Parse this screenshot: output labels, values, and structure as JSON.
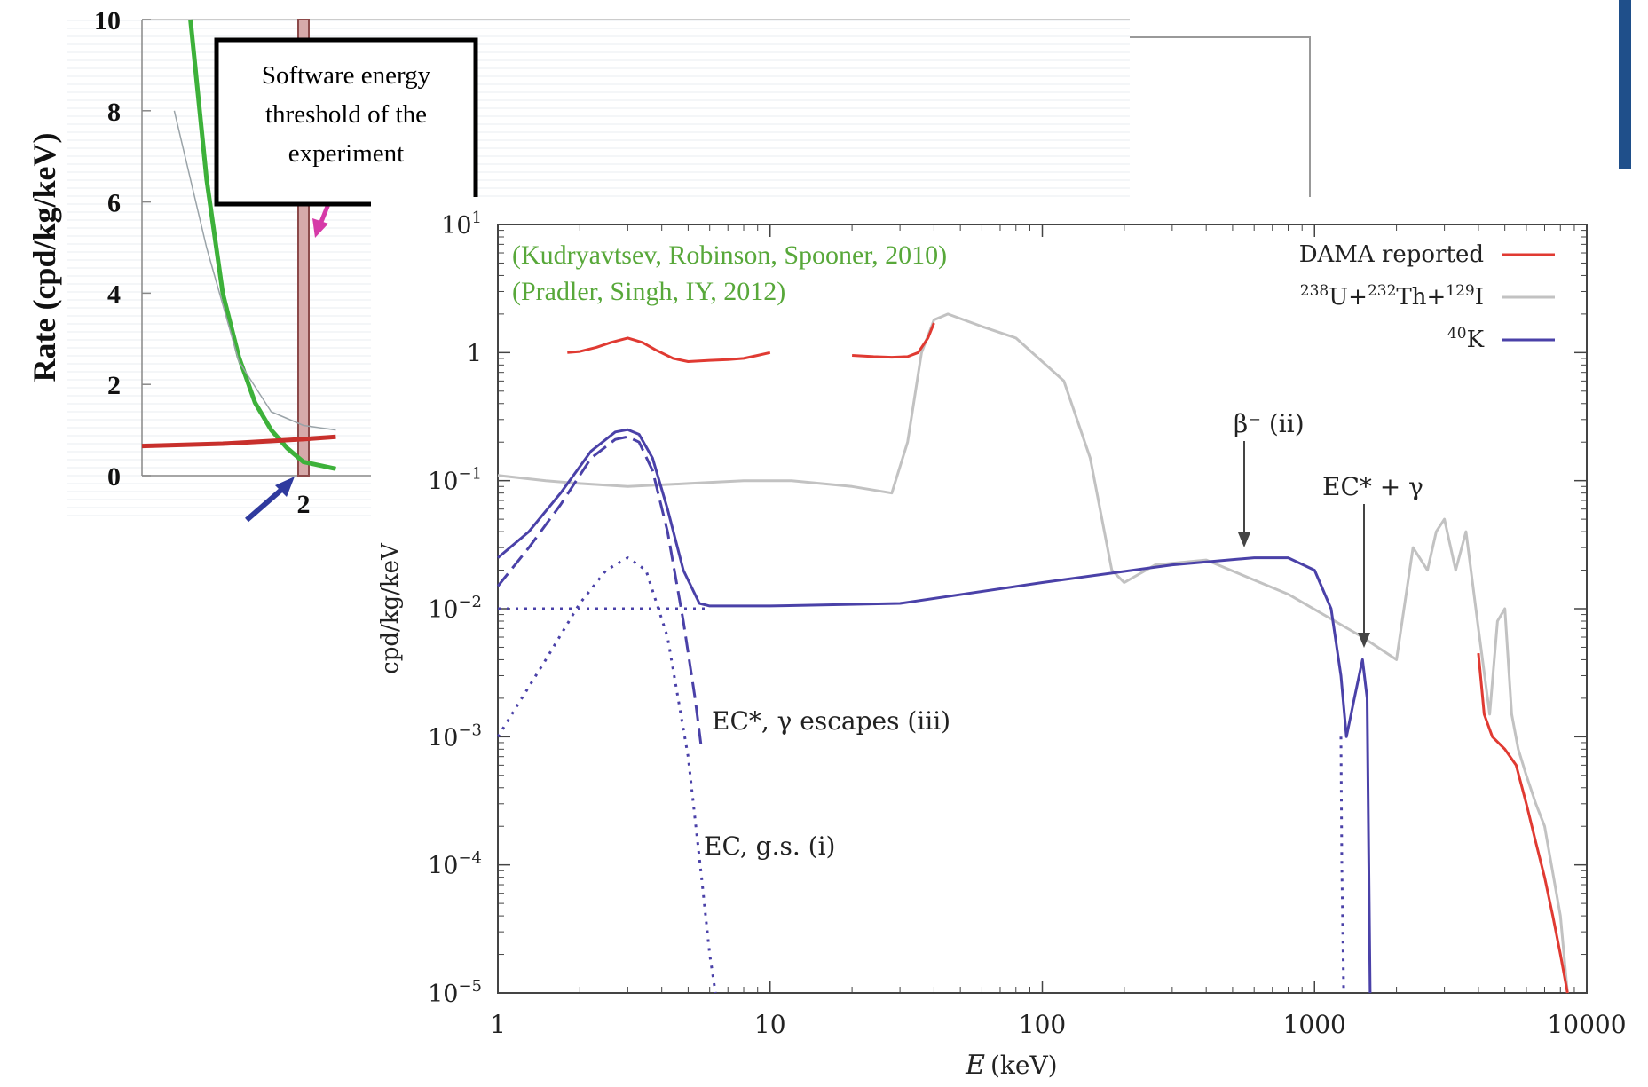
{
  "chart_data": [
    {
      "type": "line",
      "xlabel": "",
      "ylabel": "Rate (cpd/kg/keV)",
      "yticks": [
        "0",
        "2",
        "4",
        "6",
        "8",
        "10"
      ],
      "xticks": [
        "2"
      ],
      "ylim": [
        0,
        10
      ],
      "annotation": "Software energy threshold of the experiment",
      "annotation_lines": [
        "Software energy",
        "threshold of the",
        "experiment"
      ],
      "series": [
        {
          "name": "",
          "color": "#3db13a",
          "x": [
            1.3,
            1.4,
            1.5,
            1.6,
            1.7,
            1.8,
            1.9,
            2.0,
            2.2
          ],
          "y": [
            10,
            6.5,
            4.0,
            2.6,
            1.6,
            1.0,
            0.6,
            0.3,
            0.15
          ]
        },
        {
          "name": "",
          "color": "#c8302c",
          "x": [
            1.0,
            1.5,
            2.0,
            2.2
          ],
          "y": [
            0.65,
            0.7,
            0.8,
            0.85
          ]
        },
        {
          "name": "",
          "color": "#9aa3a8",
          "x": [
            1.2,
            1.4,
            1.6,
            1.8,
            2.0,
            2.2
          ],
          "y": [
            8,
            5,
            2.5,
            1.4,
            1.1,
            1.0
          ]
        }
      ]
    },
    {
      "type": "line",
      "xlabel": "E (keV)",
      "ylabel": "cpd/kg/keV",
      "xscale": "log",
      "yscale": "log",
      "xlim": [
        1,
        10000
      ],
      "ylim": [
        1e-05,
        10
      ],
      "xticks": [
        "1",
        "10",
        "100",
        "1000",
        "10000"
      ],
      "yticks": [
        "10^-5",
        "10^-4",
        "10^-3",
        "10^-2",
        "10^-1",
        "1",
        "10^1"
      ],
      "citations": [
        "(Kudryavtsev, Robinson, Spooner, 2010)",
        "(Pradler, Singh, IY, 2012)"
      ],
      "citation_color": "#58a83a",
      "legend_position": "top-right",
      "legend": [
        "DAMA reported",
        "238U+232Th+129I",
        "40K"
      ],
      "annotations": [
        "β⁻ (ii)",
        "EC* + γ",
        "EC*, γ escapes (iii)",
        "EC, g.s. (i)"
      ],
      "series": [
        {
          "name": "DAMA reported",
          "color": "#e03a32",
          "segments": [
            {
              "x": [
                1.8,
                2.0,
                2.3,
                2.6,
                3.0,
                3.4,
                3.8,
                4.4,
                5.0,
                6.0,
                7.0,
                8.0,
                9.0,
                10.0
              ],
              "y": [
                1.0,
                1.02,
                1.1,
                1.2,
                1.3,
                1.2,
                1.05,
                0.9,
                0.85,
                0.87,
                0.88,
                0.9,
                0.95,
                1.0
              ]
            },
            {
              "x": [
                20,
                24,
                28,
                32,
                35,
                38,
                40
              ],
              "y": [
                0.95,
                0.93,
                0.92,
                0.93,
                1.0,
                1.3,
                1.7
              ]
            },
            {
              "x": [
                4000,
                4200,
                4500,
                5000,
                5500,
                6000,
                6500,
                7000,
                7500,
                8000,
                8500
              ],
              "y": [
                0.0045,
                0.0015,
                0.001,
                0.0008,
                0.0006,
                0.0003,
                0.00015,
                8e-05,
                4e-05,
                2e-05,
                1e-05
              ]
            }
          ]
        },
        {
          "name": "238U+232Th+129I",
          "color": "#c2c2c2",
          "x": [
            1,
            1.5,
            2,
            3,
            5,
            8,
            12,
            20,
            28,
            32,
            36,
            40,
            45,
            60,
            80,
            120,
            150,
            180,
            200,
            260,
            400,
            800,
            1500,
            2000,
            2300,
            2600,
            2800,
            3000,
            3300,
            3600,
            4000,
            4400,
            4700,
            5000,
            5300,
            5600,
            6000,
            6500,
            7000,
            8000,
            8500
          ],
          "y": [
            0.11,
            0.1,
            0.095,
            0.09,
            0.095,
            0.1,
            0.1,
            0.09,
            0.08,
            0.2,
            1.0,
            1.8,
            2.0,
            1.6,
            1.3,
            0.6,
            0.15,
            0.02,
            0.016,
            0.022,
            0.024,
            0.013,
            0.006,
            0.004,
            0.03,
            0.02,
            0.04,
            0.05,
            0.02,
            0.04,
            0.007,
            0.0015,
            0.008,
            0.01,
            0.0015,
            0.0008,
            0.0005,
            0.0003,
            0.0002,
            4e-05,
            1e-05
          ]
        },
        {
          "name": "40K",
          "color": "#4a41a8",
          "x": [
            1,
            1.3,
            1.7,
            2.2,
            2.7,
            3.0,
            3.3,
            3.7,
            4.2,
            4.8,
            5.5,
            6,
            10,
            30,
            100,
            300,
            600,
            800,
            1000,
            1150,
            1250,
            1310,
            1400,
            1500,
            1560,
            1600
          ],
          "y": [
            0.025,
            0.04,
            0.08,
            0.17,
            0.24,
            0.25,
            0.23,
            0.15,
            0.06,
            0.02,
            0.011,
            0.0105,
            0.0105,
            0.011,
            0.016,
            0.022,
            0.025,
            0.025,
            0.02,
            0.01,
            0.003,
            0.001,
            0.002,
            0.004,
            0.002,
            1e-05
          ]
        },
        {
          "name": "",
          "style": "dashed",
          "color": "#4a41a8",
          "x": [
            1,
            1.3,
            1.7,
            2.2,
            2.7,
            3.0,
            3.3,
            3.7,
            4.2,
            4.8,
            5.3,
            5.6
          ],
          "y": [
            0.015,
            0.03,
            0.065,
            0.15,
            0.21,
            0.22,
            0.2,
            0.12,
            0.04,
            0.008,
            0.002,
            0.0008
          ]
        },
        {
          "name": "",
          "style": "dotted",
          "color": "#4a41a8",
          "x": [
            1,
            1.5,
            2.0,
            2.5,
            3.0,
            3.5,
            4.2,
            5.0,
            5.6,
            6.0,
            6.3
          ],
          "y": [
            0.001,
            0.004,
            0.011,
            0.02,
            0.025,
            0.02,
            0.006,
            0.0007,
            8e-05,
            2e-05,
            1e-05
          ]
        },
        {
          "name": "",
          "style": "dotted",
          "color": "#4a41a8",
          "x": [
            1,
            3,
            6
          ],
          "y": [
            0.01,
            0.01,
            0.01
          ]
        },
        {
          "name": "",
          "style": "dotted",
          "color": "#4a41a8",
          "x": [
            1250,
            1260,
            1280
          ],
          "y": [
            0.001,
            0.0001,
            1e-05
          ]
        }
      ]
    }
  ]
}
